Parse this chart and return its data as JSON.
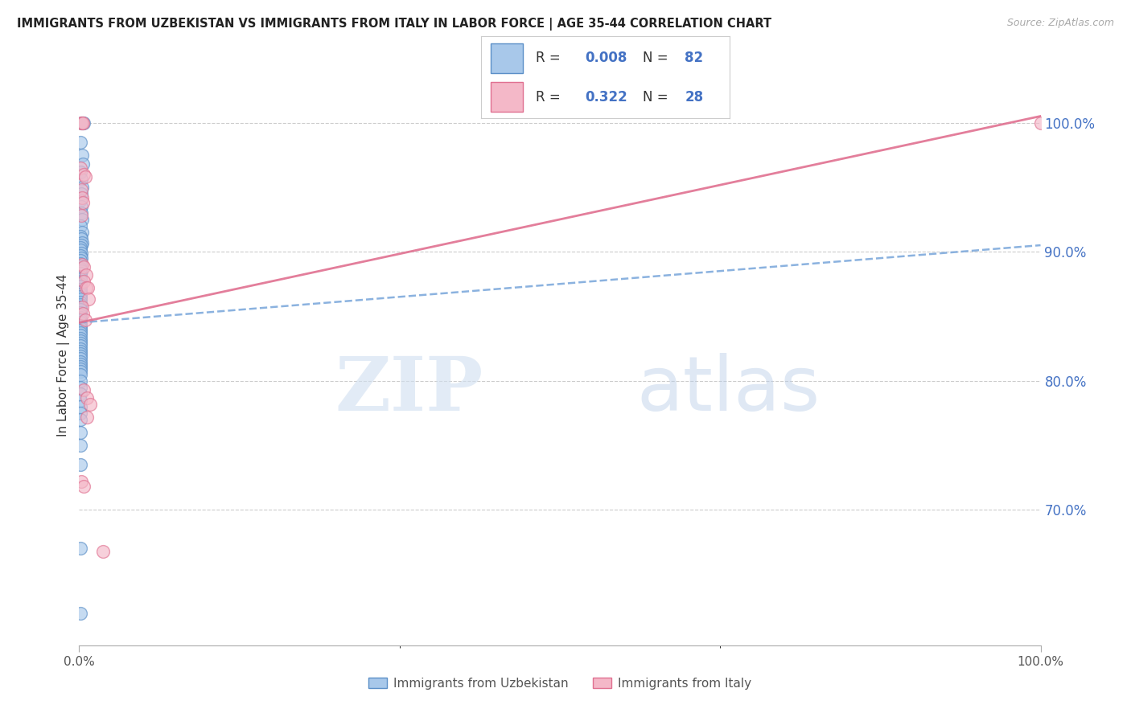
{
  "title": "IMMIGRANTS FROM UZBEKISTAN VS IMMIGRANTS FROM ITALY IN LABOR FORCE | AGE 35-44 CORRELATION CHART",
  "source": "Source: ZipAtlas.com",
  "ylabel": "In Labor Force | Age 35-44",
  "y_tick_display": [
    0.7,
    0.8,
    0.9,
    1.0
  ],
  "xlim": [
    0.0,
    1.0
  ],
  "ylim": [
    0.595,
    1.045
  ],
  "uzbekistan_color": "#a8c8ea",
  "italy_color": "#f4b8c8",
  "uzbekistan_edge": "#5b8fc7",
  "italy_edge": "#e07090",
  "trend_uzbekistan_color": "#7faadc",
  "trend_italy_color": "#e07090",
  "legend_R_uzbekistan": "0.008",
  "legend_N_uzbekistan": "82",
  "legend_R_italy": "0.322",
  "legend_N_italy": "28",
  "trend_uzbek_x0": 0.0,
  "trend_uzbek_y0": 0.845,
  "trend_uzbek_x1": 1.0,
  "trend_uzbek_y1": 0.905,
  "trend_italy_x0": 0.0,
  "trend_italy_y0": 0.845,
  "trend_italy_x1": 1.0,
  "trend_italy_y1": 1.005,
  "uzbekistan_x": [
    0.002,
    0.004,
    0.005,
    0.001,
    0.003,
    0.004,
    0.001,
    0.002,
    0.003,
    0.002,
    0.001,
    0.002,
    0.002,
    0.003,
    0.001,
    0.003,
    0.001,
    0.002,
    0.003,
    0.002,
    0.001,
    0.001,
    0.002,
    0.001,
    0.002,
    0.001,
    0.001,
    0.002,
    0.001,
    0.002,
    0.001,
    0.001,
    0.001,
    0.002,
    0.001,
    0.001,
    0.001,
    0.001,
    0.001,
    0.001,
    0.001,
    0.001,
    0.001,
    0.001,
    0.001,
    0.001,
    0.001,
    0.001,
    0.001,
    0.001,
    0.001,
    0.001,
    0.001,
    0.001,
    0.001,
    0.001,
    0.001,
    0.001,
    0.001,
    0.001,
    0.001,
    0.001,
    0.001,
    0.001,
    0.001,
    0.001,
    0.001,
    0.001,
    0.001,
    0.001,
    0.001,
    0.001,
    0.001,
    0.001,
    0.001,
    0.001,
    0.001,
    0.001,
    0.001,
    0.001,
    0.001,
    0.001
  ],
  "uzbekistan_y": [
    1.0,
    1.0,
    1.0,
    0.985,
    0.975,
    0.968,
    0.962,
    0.956,
    0.95,
    0.945,
    0.94,
    0.935,
    0.93,
    0.925,
    0.92,
    0.915,
    0.912,
    0.91,
    0.907,
    0.905,
    0.903,
    0.901,
    0.899,
    0.897,
    0.895,
    0.893,
    0.891,
    0.889,
    0.887,
    0.885,
    0.883,
    0.881,
    0.879,
    0.877,
    0.875,
    0.873,
    0.871,
    0.869,
    0.867,
    0.865,
    0.863,
    0.861,
    0.859,
    0.857,
    0.855,
    0.853,
    0.851,
    0.849,
    0.847,
    0.845,
    0.843,
    0.841,
    0.839,
    0.837,
    0.835,
    0.833,
    0.831,
    0.829,
    0.827,
    0.825,
    0.823,
    0.821,
    0.819,
    0.817,
    0.815,
    0.813,
    0.811,
    0.809,
    0.807,
    0.805,
    0.8,
    0.795,
    0.79,
    0.785,
    0.78,
    0.775,
    0.77,
    0.76,
    0.75,
    0.735,
    0.67,
    0.62
  ],
  "italy_x": [
    0.002,
    0.003,
    0.004,
    0.001,
    0.005,
    0.006,
    0.002,
    0.003,
    0.004,
    0.002,
    0.003,
    0.005,
    0.007,
    0.005,
    0.007,
    0.009,
    0.01,
    0.003,
    0.004,
    0.006,
    0.005,
    0.008,
    0.011,
    0.008,
    0.002,
    0.005,
    0.025,
    1.0
  ],
  "italy_y": [
    1.0,
    1.0,
    1.0,
    0.965,
    0.96,
    0.958,
    0.948,
    0.942,
    0.938,
    0.928,
    0.89,
    0.888,
    0.882,
    0.877,
    0.872,
    0.872,
    0.863,
    0.857,
    0.852,
    0.847,
    0.793,
    0.787,
    0.782,
    0.772,
    0.722,
    0.718,
    0.668,
    1.0
  ],
  "watermark_zip": "ZIP",
  "watermark_atlas": "atlas",
  "background_color": "#ffffff",
  "grid_color": "#cccccc"
}
